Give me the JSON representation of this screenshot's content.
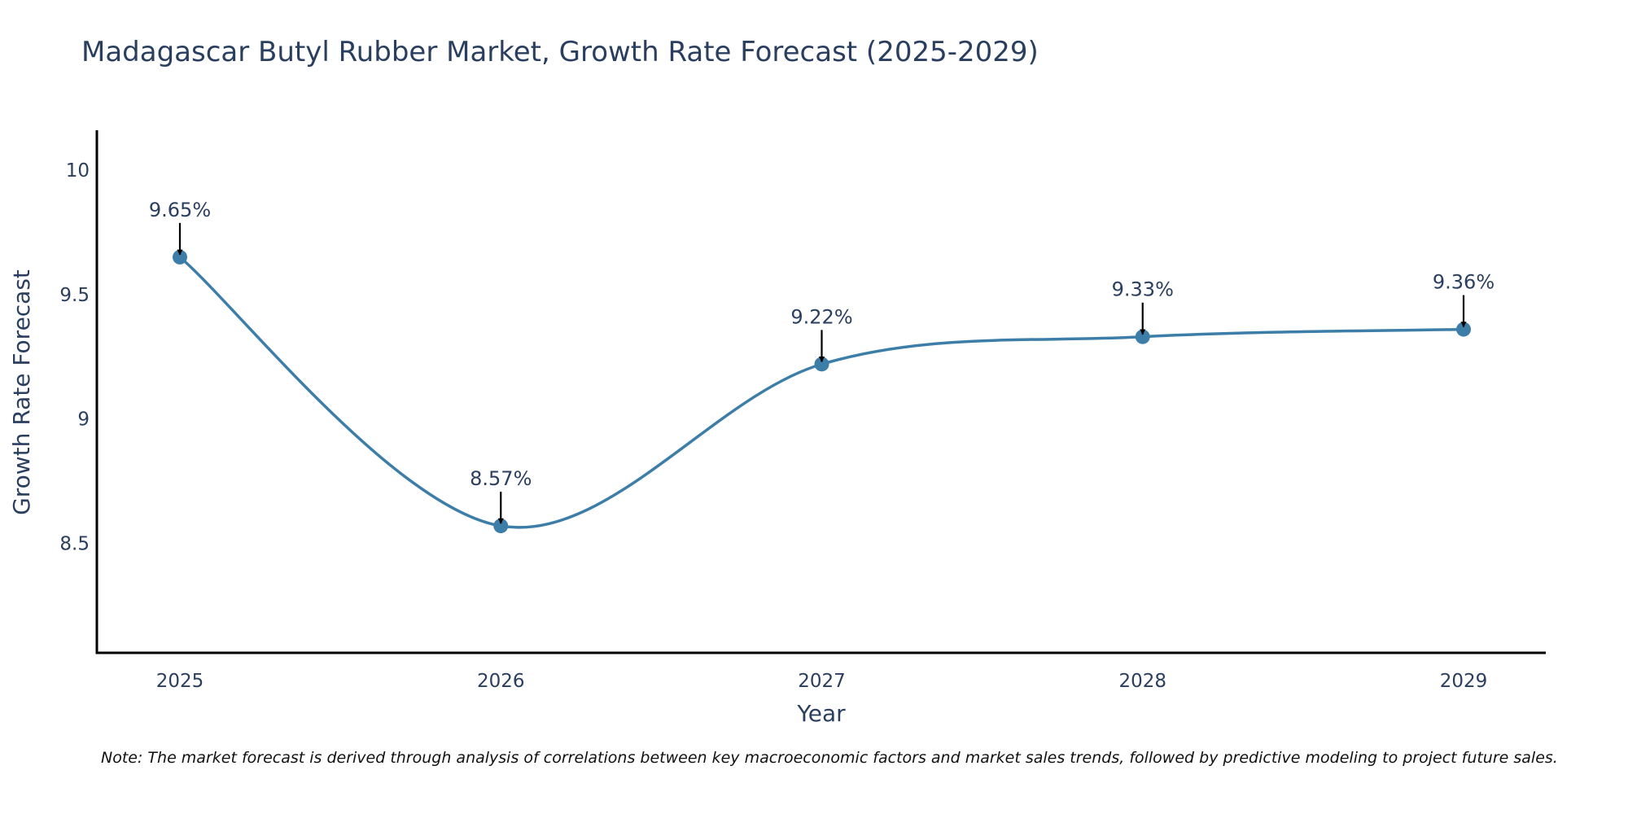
{
  "chart_data": {
    "type": "line",
    "title": "Madagascar Butyl Rubber Market, Growth Rate Forecast (2025-2029)",
    "xlabel": "Year",
    "ylabel": "Growth Rate Forecast",
    "categories": [
      "2025",
      "2026",
      "2027",
      "2028",
      "2029"
    ],
    "series": [
      {
        "name": "Growth Rate Forecast",
        "values": [
          9.65,
          8.57,
          9.22,
          9.33,
          9.36
        ]
      }
    ],
    "data_labels": [
      "9.65%",
      "8.57%",
      "9.22%",
      "9.33%",
      "9.36%"
    ],
    "yticks": [
      8.5,
      9,
      9.5,
      10
    ],
    "ytick_labels": [
      "8.5",
      "9",
      "9.5",
      "10"
    ],
    "ylim": [
      8.06,
      10.16
    ],
    "line_color": "#3d7ea9",
    "grid": false
  },
  "note": "Note: The market forecast is derived through analysis of correlations between key macroeconomic factors and market sales trends, followed by predictive modeling to project future sales."
}
